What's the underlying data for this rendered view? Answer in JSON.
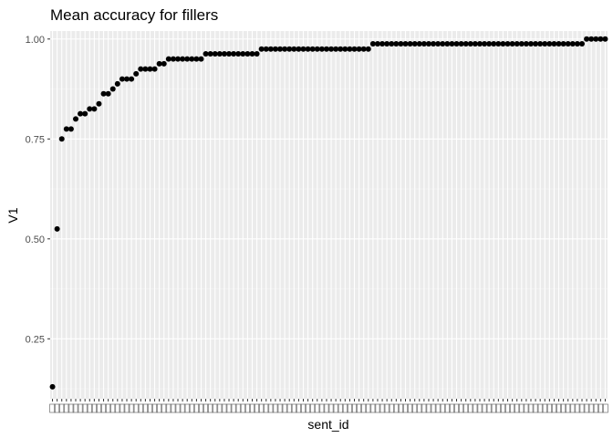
{
  "chart_data": {
    "type": "scatter",
    "title": "Mean accuracy for fillers",
    "xlabel": "sent_id",
    "ylabel": "V1",
    "ylim": [
      0.1,
      1.02
    ],
    "yticks": [
      0.25,
      0.5,
      0.75,
      1.0
    ],
    "ytick_labels": [
      "0.25",
      "0.50",
      "0.75",
      "1.00"
    ],
    "grid": true,
    "legend": "none",
    "point_color": "#000000",
    "panel_color": "#ebebeb",
    "category_count": 120,
    "values": [
      0.13,
      0.525,
      0.75,
      0.775,
      0.775,
      0.8,
      0.813,
      0.813,
      0.825,
      0.825,
      0.838,
      0.863,
      0.863,
      0.875,
      0.888,
      0.9,
      0.9,
      0.9,
      0.913,
      0.925,
      0.925,
      0.925,
      0.925,
      0.938,
      0.938,
      0.95,
      0.95,
      0.95,
      0.95,
      0.95,
      0.95,
      0.95,
      0.95,
      0.963,
      0.963,
      0.963,
      0.963,
      0.963,
      0.963,
      0.963,
      0.963,
      0.963,
      0.963,
      0.963,
      0.963,
      0.975,
      0.975,
      0.975,
      0.975,
      0.975,
      0.975,
      0.975,
      0.975,
      0.975,
      0.975,
      0.975,
      0.975,
      0.975,
      0.975,
      0.975,
      0.975,
      0.975,
      0.975,
      0.975,
      0.975,
      0.975,
      0.975,
      0.975,
      0.975,
      0.988,
      0.988,
      0.988,
      0.988,
      0.988,
      0.988,
      0.988,
      0.988,
      0.988,
      0.988,
      0.988,
      0.988,
      0.988,
      0.988,
      0.988,
      0.988,
      0.988,
      0.988,
      0.988,
      0.988,
      0.988,
      0.988,
      0.988,
      0.988,
      0.988,
      0.988,
      0.988,
      0.988,
      0.988,
      0.988,
      0.988,
      0.988,
      0.988,
      0.988,
      0.988,
      0.988,
      0.988,
      0.988,
      0.988,
      0.988,
      0.988,
      0.988,
      0.988,
      0.988,
      0.988,
      0.988,
      1.0,
      1.0,
      1.0,
      1.0,
      1.0
    ]
  }
}
